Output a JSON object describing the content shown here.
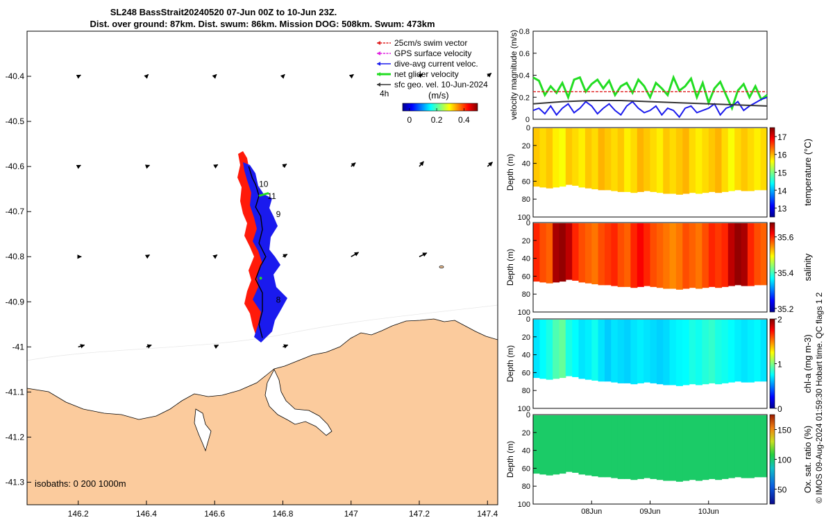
{
  "title": {
    "line1": "SL248 BassStrait20240520 07-Jun 00Z to 10-Jun 23Z.",
    "line2": "Dist. over ground: 87km. Dist. swum: 86km. Mission DOG: 508km. Swum: 473km"
  },
  "map": {
    "lon_ticks": [
      "146.2",
      "146.4",
      "146.6",
      "146.8",
      "147",
      "147.2",
      "147.4"
    ],
    "lon_values": [
      146.2,
      146.4,
      146.6,
      146.8,
      147.0,
      147.2,
      147.4
    ],
    "lat_ticks": [
      "-40.4",
      "-40.5",
      "-40.6",
      "-40.7",
      "-40.8",
      "-40.9",
      "-41",
      "-41.1",
      "-41.2",
      "-41.3"
    ],
    "lat_values": [
      -40.4,
      -40.5,
      -40.6,
      -40.7,
      -40.8,
      -40.9,
      -41.0,
      -41.1,
      -41.2,
      -41.3
    ],
    "xlim": [
      146.05,
      147.43
    ],
    "ylim": [
      -41.35,
      -40.3
    ],
    "legend": [
      {
        "label": "25cm/s swim vector",
        "color": "#e02020"
      },
      {
        "label": "GPS surface velocity",
        "color": "#e020e0"
      },
      {
        "label": "dive-avg current veloc.",
        "color": "#1a1aee"
      },
      {
        "label": "net glider velocity",
        "color": "#22dd22"
      },
      {
        "label": "sfc geo. vel. 10-Jun-2024",
        "color": "#333333"
      }
    ],
    "interval_label": "4h",
    "colorbar": {
      "unit": "(m/s)",
      "ticks": [
        "0",
        "0.2",
        "0.4"
      ],
      "tick_values": [
        0,
        0.2,
        0.4
      ],
      "range": [
        -0.05,
        0.5
      ]
    },
    "isobaths_label": "isobaths: 0   200  1000m",
    "day_labels": [
      {
        "text": "10",
        "lon": 146.73,
        "lat": -40.645
      },
      {
        "text": "11",
        "lon": 146.755,
        "lat": -40.672
      },
      {
        "text": "9",
        "lon": 146.78,
        "lat": -40.712
      },
      {
        "text": "8",
        "lon": 146.78,
        "lat": -40.902
      }
    ],
    "glider_track": {
      "lon": [
        146.7,
        146.71,
        146.72,
        146.73,
        146.72,
        146.735,
        146.74,
        146.73,
        146.75,
        146.735,
        146.72,
        146.74,
        146.74,
        146.73,
        146.74
      ],
      "lat": [
        -40.6,
        -40.625,
        -40.64,
        -40.665,
        -40.69,
        -40.71,
        -40.74,
        -40.77,
        -40.8,
        -40.82,
        -40.85,
        -40.88,
        -40.92,
        -40.95,
        -40.98
      ]
    },
    "geostrophic_vectors": {
      "lon": [
        146.2,
        146.4,
        146.6,
        146.8,
        147.0,
        147.2,
        147.4,
        146.2,
        146.4,
        146.6,
        146.8,
        147.0,
        147.2,
        147.4,
        146.2,
        146.4,
        146.6,
        146.8,
        147.0,
        147.2,
        147.4,
        146.2,
        146.4,
        146.6,
        146.8,
        147.0,
        147.2,
        147.4
      ],
      "lat": [
        -40.4,
        -40.4,
        -40.4,
        -40.4,
        -40.4,
        -40.4,
        -40.4,
        -40.6,
        -40.6,
        -40.6,
        -40.6,
        -40.6,
        -40.6,
        -40.6,
        -40.8,
        -40.8,
        -40.8,
        -40.8,
        -40.8,
        -40.8,
        -40.8,
        -41.0,
        -41.0,
        -41.0,
        -41.0,
        -41.0,
        -41.0,
        -41.0
      ],
      "u": [
        0.04,
        0.03,
        0.03,
        0.03,
        0.04,
        0.05,
        0.06,
        0.04,
        0.05,
        0.05,
        0.06,
        0.07,
        0.07,
        0.08,
        0.05,
        0.05,
        0.04,
        0.07,
        0.12,
        0.12,
        0.0,
        0.1,
        0.08,
        0.06,
        0.08,
        0.0,
        0.0,
        0.0
      ],
      "v": [
        0.02,
        0.03,
        0.03,
        0.03,
        0.03,
        0.04,
        0.05,
        0.02,
        0.02,
        0.03,
        0.04,
        0.06,
        0.08,
        0.07,
        0.0,
        0.03,
        0.03,
        0.04,
        0.07,
        0.06,
        0.0,
        0.03,
        0.03,
        0.03,
        0.03,
        0.0,
        0.0,
        0.0
      ]
    }
  },
  "chart_data": [
    {
      "type": "line",
      "title": "",
      "xlabel": "",
      "ylabel": "velocity magnitude (m/s)",
      "ylim": [
        0,
        0.8
      ],
      "yticks": [
        "0",
        "0.2",
        "0.4",
        "0.6",
        "0.8"
      ],
      "ytick_values": [
        0,
        0.2,
        0.4,
        0.6,
        0.8
      ],
      "xlim": [
        0,
        4
      ],
      "series": [
        {
          "name": "net glider velocity",
          "color": "#22dd22",
          "x": [
            0,
            0.1,
            0.2,
            0.3,
            0.4,
            0.5,
            0.6,
            0.7,
            0.8,
            0.9,
            1.0,
            1.1,
            1.2,
            1.3,
            1.4,
            1.5,
            1.6,
            1.7,
            1.8,
            1.9,
            2.0,
            2.1,
            2.2,
            2.3,
            2.4,
            2.5,
            2.6,
            2.7,
            2.8,
            2.9,
            3.0,
            3.1,
            3.2,
            3.3,
            3.4,
            3.5,
            3.6,
            3.7,
            3.8,
            3.9,
            4.0
          ],
          "values": [
            0.38,
            0.35,
            0.22,
            0.3,
            0.24,
            0.33,
            0.2,
            0.36,
            0.38,
            0.25,
            0.32,
            0.36,
            0.28,
            0.35,
            0.22,
            0.3,
            0.33,
            0.24,
            0.36,
            0.3,
            0.2,
            0.33,
            0.28,
            0.22,
            0.38,
            0.26,
            0.3,
            0.37,
            0.2,
            0.33,
            0.15,
            0.28,
            0.34,
            0.22,
            0.1,
            0.26,
            0.32,
            0.2,
            0.3,
            0.18,
            0.22
          ]
        },
        {
          "name": "25cm/s swim vector",
          "color": "#e02020",
          "dashed": true,
          "x": [
            0,
            4
          ],
          "values": [
            0.25,
            0.25
          ]
        },
        {
          "name": "dive-avg current veloc.",
          "color": "#1a1aee",
          "x": [
            0,
            0.1,
            0.2,
            0.3,
            0.4,
            0.5,
            0.6,
            0.7,
            0.8,
            0.9,
            1.0,
            1.1,
            1.2,
            1.3,
            1.4,
            1.5,
            1.6,
            1.7,
            1.8,
            1.9,
            2.0,
            2.1,
            2.2,
            2.3,
            2.4,
            2.5,
            2.6,
            2.7,
            2.8,
            2.9,
            3.0,
            3.1,
            3.2,
            3.3,
            3.4,
            3.5,
            3.6,
            3.7,
            3.8,
            3.9,
            4.0
          ],
          "values": [
            0.08,
            0.1,
            0.05,
            0.12,
            0.04,
            0.1,
            0.14,
            0.06,
            0.1,
            0.16,
            0.12,
            0.05,
            0.1,
            0.14,
            0.08,
            0.04,
            0.12,
            0.16,
            0.1,
            0.06,
            0.08,
            0.12,
            0.04,
            0.1,
            0.08,
            0.02,
            0.1,
            0.12,
            0.06,
            0.08,
            0.1,
            0.14,
            0.04,
            0.1,
            0.12,
            0.16,
            0.08,
            0.12,
            0.15,
            0.18,
            0.2
          ]
        },
        {
          "name": "sfc geo. vel. 10-Jun-2024",
          "color": "#333333",
          "x": [
            0,
            0.5,
            1.0,
            1.5,
            2.0,
            2.5,
            3.0,
            3.5,
            4.0
          ],
          "values": [
            0.14,
            0.16,
            0.17,
            0.17,
            0.16,
            0.15,
            0.14,
            0.13,
            0.12
          ]
        }
      ]
    },
    {
      "type": "heatmap",
      "ylabel": "Depth (m)",
      "colorbar_label": "temperature (°C)",
      "yticks": [
        "0",
        "20",
        "40",
        "60",
        "80",
        "100"
      ],
      "ytick_values": [
        0,
        20,
        40,
        60,
        80,
        100
      ],
      "ylim": [
        100,
        0
      ],
      "colorbar_ticks": [
        "13",
        "14",
        "15",
        "16",
        "17"
      ],
      "colorbar_values": [
        13,
        14,
        15,
        16,
        17
      ],
      "crange": [
        12.5,
        17.5
      ],
      "column_values": [
        15.9,
        15.8,
        15.9,
        15.7,
        15.6,
        15.9,
        15.8,
        15.7,
        15.9,
        15.8,
        16.0,
        15.9,
        15.8,
        15.9,
        15.7,
        15.8,
        16.0,
        15.9,
        15.8,
        15.7,
        15.9,
        15.8,
        15.9,
        16.0,
        15.8,
        15.7,
        15.8,
        15.9,
        16.0,
        15.8,
        15.6,
        15.8,
        15.9,
        15.8,
        15.7,
        15.8
      ],
      "bottom_depth": [
        66,
        67,
        68,
        67,
        66,
        64,
        65,
        67,
        68,
        69,
        70,
        70,
        71,
        72,
        72,
        73,
        72,
        71,
        72,
        73,
        74,
        74,
        75,
        74,
        73,
        74,
        73,
        72,
        73,
        72,
        71,
        70,
        71,
        71,
        70,
        70
      ]
    },
    {
      "type": "heatmap",
      "ylabel": "Depth (m)",
      "colorbar_label": "salinity",
      "yticks": [
        "0",
        "20",
        "40",
        "60",
        "80",
        "100"
      ],
      "ytick_values": [
        0,
        20,
        40,
        60,
        80,
        100
      ],
      "ylim": [
        100,
        0
      ],
      "colorbar_ticks": [
        "35.2",
        "35.4",
        "35.6"
      ],
      "colorbar_values": [
        35.2,
        35.4,
        35.6
      ],
      "crange": [
        35.18,
        35.68
      ],
      "column_values": [
        35.6,
        35.58,
        35.57,
        35.66,
        35.67,
        35.65,
        35.6,
        35.58,
        35.57,
        35.56,
        35.58,
        35.59,
        35.6,
        35.58,
        35.57,
        35.6,
        35.62,
        35.6,
        35.58,
        35.57,
        35.56,
        35.55,
        35.56,
        35.58,
        35.57,
        35.56,
        35.58,
        35.6,
        35.59,
        35.6,
        35.65,
        35.67,
        35.66,
        35.6,
        35.58,
        35.57
      ],
      "bottom_depth": [
        66,
        67,
        68,
        67,
        66,
        64,
        65,
        67,
        68,
        69,
        70,
        70,
        71,
        72,
        72,
        73,
        72,
        71,
        72,
        73,
        74,
        74,
        75,
        74,
        73,
        74,
        73,
        72,
        73,
        72,
        71,
        70,
        71,
        71,
        70,
        70
      ]
    },
    {
      "type": "heatmap",
      "ylabel": "Depth (m)",
      "colorbar_label": "chl-a (mg m-3)",
      "yticks": [
        "0",
        "20",
        "40",
        "60",
        "80",
        "100"
      ],
      "ytick_values": [
        0,
        20,
        40,
        60,
        80,
        100
      ],
      "ylim": [
        100,
        0
      ],
      "colorbar_ticks": [
        "0",
        "1",
        "2"
      ],
      "colorbar_values": [
        0,
        1,
        2
      ],
      "crange": [
        0,
        2
      ],
      "column_values": [
        0.7,
        0.75,
        0.8,
        0.9,
        0.95,
        0.8,
        0.75,
        0.7,
        0.72,
        0.78,
        0.7,
        0.65,
        0.7,
        0.68,
        0.66,
        0.7,
        0.72,
        0.7,
        0.68,
        0.66,
        0.68,
        0.72,
        0.74,
        0.75,
        0.8,
        0.78,
        0.82,
        0.85,
        0.8,
        0.78,
        0.75,
        0.72,
        0.7,
        0.72,
        0.74,
        0.7
      ],
      "bottom_depth": [
        66,
        67,
        68,
        67,
        66,
        64,
        65,
        67,
        68,
        69,
        70,
        70,
        71,
        72,
        72,
        73,
        72,
        71,
        72,
        73,
        74,
        74,
        75,
        74,
        73,
        74,
        73,
        72,
        73,
        72,
        71,
        70,
        71,
        71,
        70,
        70
      ]
    },
    {
      "type": "heatmap",
      "ylabel": "Depth (m)",
      "colorbar_label": "Ox. sat. ratio (%)",
      "yticks": [
        "0",
        "20",
        "40",
        "60",
        "80",
        "100"
      ],
      "ytick_values": [
        0,
        20,
        40,
        60,
        80,
        100
      ],
      "ylim": [
        100,
        0
      ],
      "colorbar_ticks": [
        "50",
        "100",
        "150"
      ],
      "colorbar_values": [
        50,
        100,
        150
      ],
      "crange": [
        25,
        175
      ],
      "column_values": [
        101,
        101,
        101,
        101,
        101,
        101,
        101,
        101,
        101,
        101,
        101,
        101,
        101,
        101,
        101,
        101,
        101,
        101,
        101,
        101,
        101,
        101,
        101,
        101,
        101,
        101,
        101,
        101,
        101,
        101,
        101,
        101,
        101,
        101,
        101,
        101
      ],
      "bottom_depth": [
        66,
        67,
        68,
        67,
        66,
        64,
        65,
        67,
        68,
        69,
        70,
        70,
        71,
        72,
        72,
        73,
        72,
        71,
        72,
        73,
        74,
        74,
        75,
        74,
        73,
        74,
        73,
        72,
        73,
        72,
        71,
        70,
        71,
        71,
        70,
        70
      ]
    }
  ],
  "time_axis": {
    "labels": [
      "08Jun",
      "09Jun",
      "10Jun"
    ],
    "positions": [
      1,
      2,
      3
    ],
    "range": [
      0,
      4
    ]
  },
  "side_note": "© IMOS 09-Aug-2024 01:59:30 Hobart time. QC flags 1  2"
}
